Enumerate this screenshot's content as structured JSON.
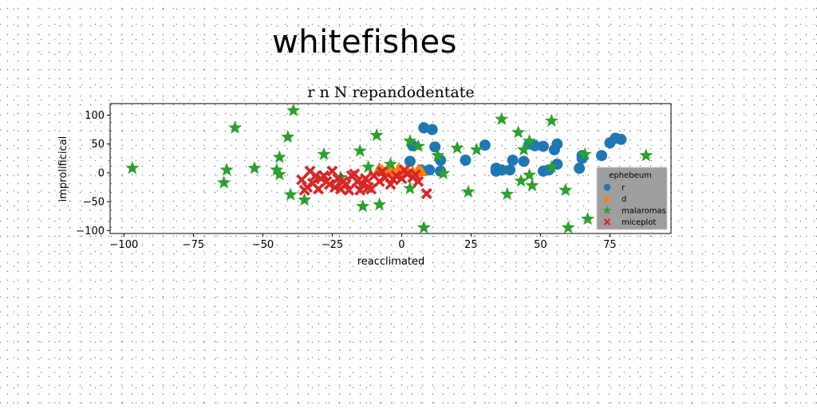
{
  "suptitle": "whitefishes",
  "chart_data": {
    "type": "scatter",
    "title": "r n N repandodentate",
    "xlabel": "reacclimated",
    "ylabel": "improlificical",
    "xlim": [
      -105,
      97
    ],
    "ylim": [
      -105,
      120
    ],
    "xticks": [
      -100,
      -75,
      -50,
      -25,
      0,
      25,
      50,
      75
    ],
    "yticks": [
      -100,
      -50,
      0,
      50,
      100
    ],
    "grid": false,
    "legend": {
      "title": "ephebeum",
      "placement": "lower-right"
    },
    "series": [
      {
        "name": "r",
        "marker": "circle",
        "color": "#1f77b4",
        "points": [
          [
            8,
            78
          ],
          [
            11,
            75
          ],
          [
            4,
            47
          ],
          [
            12,
            45
          ],
          [
            3,
            20
          ],
          [
            7,
            5
          ],
          [
            10,
            5
          ],
          [
            14,
            3
          ],
          [
            14,
            22
          ],
          [
            23,
            22
          ],
          [
            30,
            48
          ],
          [
            34,
            8
          ],
          [
            34,
            3
          ],
          [
            36,
            5
          ],
          [
            39,
            5
          ],
          [
            40,
            22
          ],
          [
            44,
            20
          ],
          [
            46,
            50
          ],
          [
            48,
            47
          ],
          [
            51,
            46
          ],
          [
            51,
            3
          ],
          [
            53,
            5
          ],
          [
            55,
            40
          ],
          [
            56,
            50
          ],
          [
            56,
            15
          ],
          [
            65,
            30
          ],
          [
            65,
            25
          ],
          [
            64,
            8
          ],
          [
            72,
            30
          ],
          [
            75,
            52
          ],
          [
            77,
            60
          ],
          [
            79,
            58
          ]
        ]
      },
      {
        "name": "d",
        "marker": "triangle",
        "color": "#ff7f0e",
        "points": [
          [
            -8,
            8
          ],
          [
            -7,
            4
          ],
          [
            -5,
            6
          ],
          [
            -3,
            3
          ],
          [
            -1,
            8
          ],
          [
            2,
            4
          ],
          [
            4,
            2
          ],
          [
            6,
            5
          ],
          [
            7,
            3
          ],
          [
            -4,
            1
          ],
          [
            0,
            2
          ]
        ]
      },
      {
        "name": "malaromas",
        "marker": "star",
        "color": "#2ca02c",
        "points": [
          [
            -39,
            108
          ],
          [
            -60,
            78
          ],
          [
            -41,
            62
          ],
          [
            -28,
            32
          ],
          [
            -15,
            38
          ],
          [
            -9,
            65
          ],
          [
            3,
            55
          ],
          [
            6,
            46
          ],
          [
            13,
            30
          ],
          [
            20,
            43
          ],
          [
            27,
            40
          ],
          [
            36,
            93
          ],
          [
            42,
            70
          ],
          [
            44,
            40
          ],
          [
            46,
            55
          ],
          [
            54,
            90
          ],
          [
            59,
            -30
          ],
          [
            60,
            -95
          ],
          [
            67,
            -80
          ],
          [
            66,
            32
          ],
          [
            54,
            10
          ],
          [
            88,
            30
          ],
          [
            -97,
            8
          ],
          [
            -63,
            5
          ],
          [
            -64,
            -17
          ],
          [
            -53,
            8
          ],
          [
            -45,
            5
          ],
          [
            -44,
            -3
          ],
          [
            -44,
            27
          ],
          [
            -40,
            -38
          ],
          [
            -35,
            -47
          ],
          [
            -14,
            -58
          ],
          [
            -8,
            -55
          ],
          [
            -4,
            15
          ],
          [
            3,
            -27
          ],
          [
            8,
            -95
          ],
          [
            15,
            -1
          ],
          [
            24,
            -33
          ],
          [
            38,
            -37
          ],
          [
            43,
            -14
          ],
          [
            46,
            -4
          ],
          [
            47,
            -22
          ],
          [
            -22,
            -8
          ],
          [
            -12,
            10
          ]
        ]
      },
      {
        "name": "miceplot",
        "marker": "x",
        "color": "#d62728",
        "points": [
          [
            -36,
            -12
          ],
          [
            -34,
            -25
          ],
          [
            -32,
            -18
          ],
          [
            -30,
            -28
          ],
          [
            -28,
            -5
          ],
          [
            -26,
            -20
          ],
          [
            -25,
            3
          ],
          [
            -23,
            -10
          ],
          [
            -22,
            -28
          ],
          [
            -20,
            -20
          ],
          [
            -18,
            -5
          ],
          [
            -16,
            -15
          ],
          [
            -15,
            -30
          ],
          [
            -13,
            -10
          ],
          [
            -12,
            -25
          ],
          [
            -10,
            -5
          ],
          [
            -8,
            -15
          ],
          [
            -6,
            -8
          ],
          [
            -4,
            -20
          ],
          [
            -2,
            -5
          ],
          [
            0,
            -10
          ],
          [
            2,
            -2
          ],
          [
            4,
            -8
          ],
          [
            6,
            -15
          ],
          [
            -35,
            -30
          ],
          [
            -31,
            -5
          ],
          [
            -27,
            -15
          ],
          [
            -24,
            -25
          ],
          [
            -19,
            -30
          ],
          [
            -17,
            -2
          ],
          [
            -11,
            -28
          ],
          [
            -7,
            2
          ],
          [
            -3,
            -12
          ],
          [
            1,
            5
          ],
          [
            5,
            -3
          ],
          [
            9,
            -36
          ],
          [
            -33,
            3
          ],
          [
            -29,
            -10
          ],
          [
            -21,
            -15
          ],
          [
            -14,
            -20
          ]
        ]
      }
    ]
  }
}
